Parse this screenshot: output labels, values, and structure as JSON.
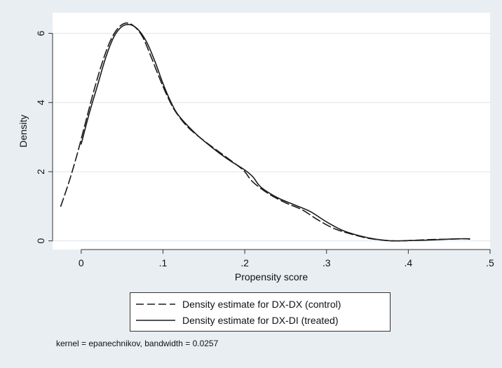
{
  "chart_data": {
    "type": "line",
    "xlabel": "Propensity score",
    "ylabel": "Density",
    "xlim": [
      -0.035,
      0.5
    ],
    "ylim": [
      -0.25,
      6.6
    ],
    "x_ticks": [
      0,
      0.1,
      0.2,
      0.3,
      0.4,
      0.5
    ],
    "x_tick_labels": [
      "0",
      ".1",
      ".2",
      ".3",
      ".4",
      ".5"
    ],
    "y_ticks": [
      0,
      2,
      4,
      6
    ],
    "y_tick_labels": [
      "0",
      "2",
      "4",
      "6"
    ],
    "grid": "horizontal",
    "legend_position": "bottom",
    "series": [
      {
        "name": "Density estimate for DX-DX (control)",
        "style": "dashed",
        "color": "#1a1a1a",
        "points": [
          [
            -0.025,
            1.0
          ],
          [
            -0.015,
            1.7
          ],
          [
            -0.005,
            2.5
          ],
          [
            0.005,
            3.4
          ],
          [
            0.015,
            4.3
          ],
          [
            0.025,
            5.1
          ],
          [
            0.035,
            5.75
          ],
          [
            0.045,
            6.15
          ],
          [
            0.055,
            6.3
          ],
          [
            0.065,
            6.2
          ],
          [
            0.075,
            5.9
          ],
          [
            0.085,
            5.35
          ],
          [
            0.095,
            4.75
          ],
          [
            0.105,
            4.2
          ],
          [
            0.115,
            3.75
          ],
          [
            0.13,
            3.3
          ],
          [
            0.15,
            2.9
          ],
          [
            0.17,
            2.55
          ],
          [
            0.19,
            2.2
          ],
          [
            0.2,
            2.0
          ],
          [
            0.21,
            1.7
          ],
          [
            0.23,
            1.35
          ],
          [
            0.25,
            1.1
          ],
          [
            0.27,
            0.9
          ],
          [
            0.29,
            0.6
          ],
          [
            0.31,
            0.35
          ],
          [
            0.33,
            0.2
          ],
          [
            0.35,
            0.08
          ],
          [
            0.37,
            0.02
          ],
          [
            0.39,
            0.0
          ],
          [
            0.41,
            0.02
          ],
          [
            0.43,
            0.04
          ],
          [
            0.45,
            0.05
          ],
          [
            0.47,
            0.06
          ],
          [
            0.475,
            0.05
          ]
        ]
      },
      {
        "name": "Density estimate for DX-DI (treated)",
        "style": "solid",
        "color": "#1a1a1a",
        "points": [
          [
            0.0,
            2.8
          ],
          [
            0.01,
            3.7
          ],
          [
            0.02,
            4.5
          ],
          [
            0.03,
            5.3
          ],
          [
            0.04,
            5.9
          ],
          [
            0.05,
            6.2
          ],
          [
            0.06,
            6.25
          ],
          [
            0.07,
            6.1
          ],
          [
            0.08,
            5.75
          ],
          [
            0.09,
            5.2
          ],
          [
            0.1,
            4.55
          ],
          [
            0.11,
            4.0
          ],
          [
            0.12,
            3.6
          ],
          [
            0.14,
            3.1
          ],
          [
            0.16,
            2.7
          ],
          [
            0.18,
            2.35
          ],
          [
            0.2,
            2.05
          ],
          [
            0.21,
            1.85
          ],
          [
            0.22,
            1.55
          ],
          [
            0.24,
            1.25
          ],
          [
            0.26,
            1.05
          ],
          [
            0.28,
            0.85
          ],
          [
            0.3,
            0.55
          ],
          [
            0.32,
            0.3
          ],
          [
            0.34,
            0.15
          ],
          [
            0.36,
            0.05
          ],
          [
            0.38,
            0.0
          ],
          [
            0.4,
            0.01
          ],
          [
            0.42,
            0.02
          ],
          [
            0.44,
            0.04
          ],
          [
            0.46,
            0.06
          ],
          [
            0.475,
            0.06
          ]
        ]
      }
    ]
  },
  "legend": {
    "items": [
      {
        "label": "Density estimate for DX-DX (control)",
        "style": "dashed"
      },
      {
        "label": "Density estimate for DX-DI (treated)",
        "style": "solid"
      }
    ]
  },
  "note": "kernel = epanechnikov, bandwidth = 0.0257",
  "colors": {
    "page_background": "#e8eef2",
    "plot_background": "#ffffff",
    "gridline": "#dde5eb",
    "line": "#1a1a1a"
  }
}
